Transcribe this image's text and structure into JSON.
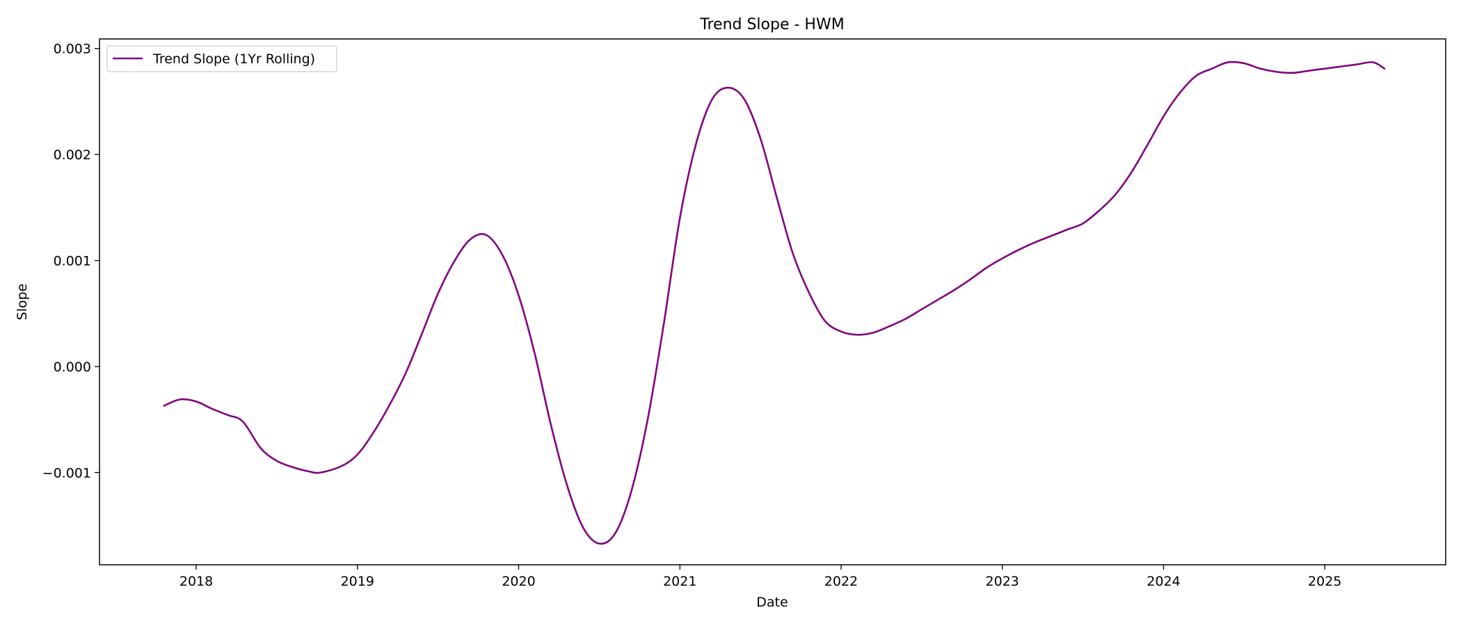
{
  "chart_data": {
    "type": "line",
    "title": "Trend Slope - HWM",
    "xlabel": "Date",
    "ylabel": "Slope",
    "xlim": [
      2017.4,
      2025.75
    ],
    "ylim": [
      -0.00187,
      0.00309
    ],
    "x_ticks": [
      {
        "value": 2018,
        "label": "2018"
      },
      {
        "value": 2019,
        "label": "2019"
      },
      {
        "value": 2020,
        "label": "2020"
      },
      {
        "value": 2021,
        "label": "2021"
      },
      {
        "value": 2022,
        "label": "2022"
      },
      {
        "value": 2023,
        "label": "2023"
      },
      {
        "value": 2024,
        "label": "2024"
      },
      {
        "value": 2025,
        "label": "2025"
      }
    ],
    "y_ticks": [
      {
        "value": 0.003,
        "label": "0.003"
      },
      {
        "value": 0.002,
        "label": "0.002"
      },
      {
        "value": 0.001,
        "label": "0.001"
      },
      {
        "value": 0.0,
        "label": "0.000"
      },
      {
        "value": -0.001,
        "label": "−0.001"
      }
    ],
    "grid": false,
    "legend_position": "top-left",
    "series": [
      {
        "name": "Trend Slope (1Yr Rolling)",
        "color": "#800080",
        "x": [
          2017.8,
          2017.9,
          2018.0,
          2018.1,
          2018.2,
          2018.29,
          2018.4,
          2018.5,
          2018.6,
          2018.7,
          2018.77,
          2018.9,
          2019.0,
          2019.1,
          2019.2,
          2019.3,
          2019.4,
          2019.5,
          2019.6,
          2019.7,
          2019.8,
          2019.9,
          2020.0,
          2020.1,
          2020.2,
          2020.3,
          2020.4,
          2020.5,
          2020.6,
          2020.7,
          2020.8,
          2020.9,
          2021.0,
          2021.1,
          2021.2,
          2021.3,
          2021.4,
          2021.5,
          2021.6,
          2021.7,
          2021.8,
          2021.9,
          2022.0,
          2022.1,
          2022.2,
          2022.3,
          2022.4,
          2022.5,
          2022.6,
          2022.7,
          2022.8,
          2022.9,
          2023.0,
          2023.1,
          2023.2,
          2023.3,
          2023.4,
          2023.5,
          2023.6,
          2023.7,
          2023.8,
          2023.9,
          2024.0,
          2024.1,
          2024.2,
          2024.3,
          2024.4,
          2024.5,
          2024.6,
          2024.7,
          2024.8,
          2024.9,
          2025.0,
          2025.1,
          2025.2,
          2025.3,
          2025.37
        ],
        "y": [
          -0.00037,
          -0.00031,
          -0.00033,
          -0.0004,
          -0.00046,
          -0.00052,
          -0.00077,
          -0.00089,
          -0.00095,
          -0.00099,
          -0.001,
          -0.00094,
          -0.00083,
          -0.00062,
          -0.00036,
          -6e-05,
          0.00031,
          0.00069,
          0.00099,
          0.0012,
          0.00124,
          0.00105,
          0.00067,
          0.00012,
          -0.00055,
          -0.00112,
          -0.00152,
          -0.00167,
          -0.00157,
          -0.00117,
          -0.0005,
          0.0004,
          0.0014,
          0.0021,
          0.00252,
          0.00263,
          0.00252,
          0.00215,
          0.0016,
          0.00107,
          0.0007,
          0.00043,
          0.00033,
          0.0003,
          0.00032,
          0.00038,
          0.00045,
          0.00054,
          0.00063,
          0.00072,
          0.00082,
          0.00093,
          0.00102,
          0.0011,
          0.00117,
          0.00123,
          0.00129,
          0.00135,
          0.00147,
          0.00162,
          0.00183,
          0.00209,
          0.00236,
          0.00258,
          0.00274,
          0.00281,
          0.00287,
          0.00286,
          0.00281,
          0.00278,
          0.00277,
          0.00279,
          0.00281,
          0.00283,
          0.00285,
          0.00287,
          0.00281
        ]
      }
    ]
  }
}
